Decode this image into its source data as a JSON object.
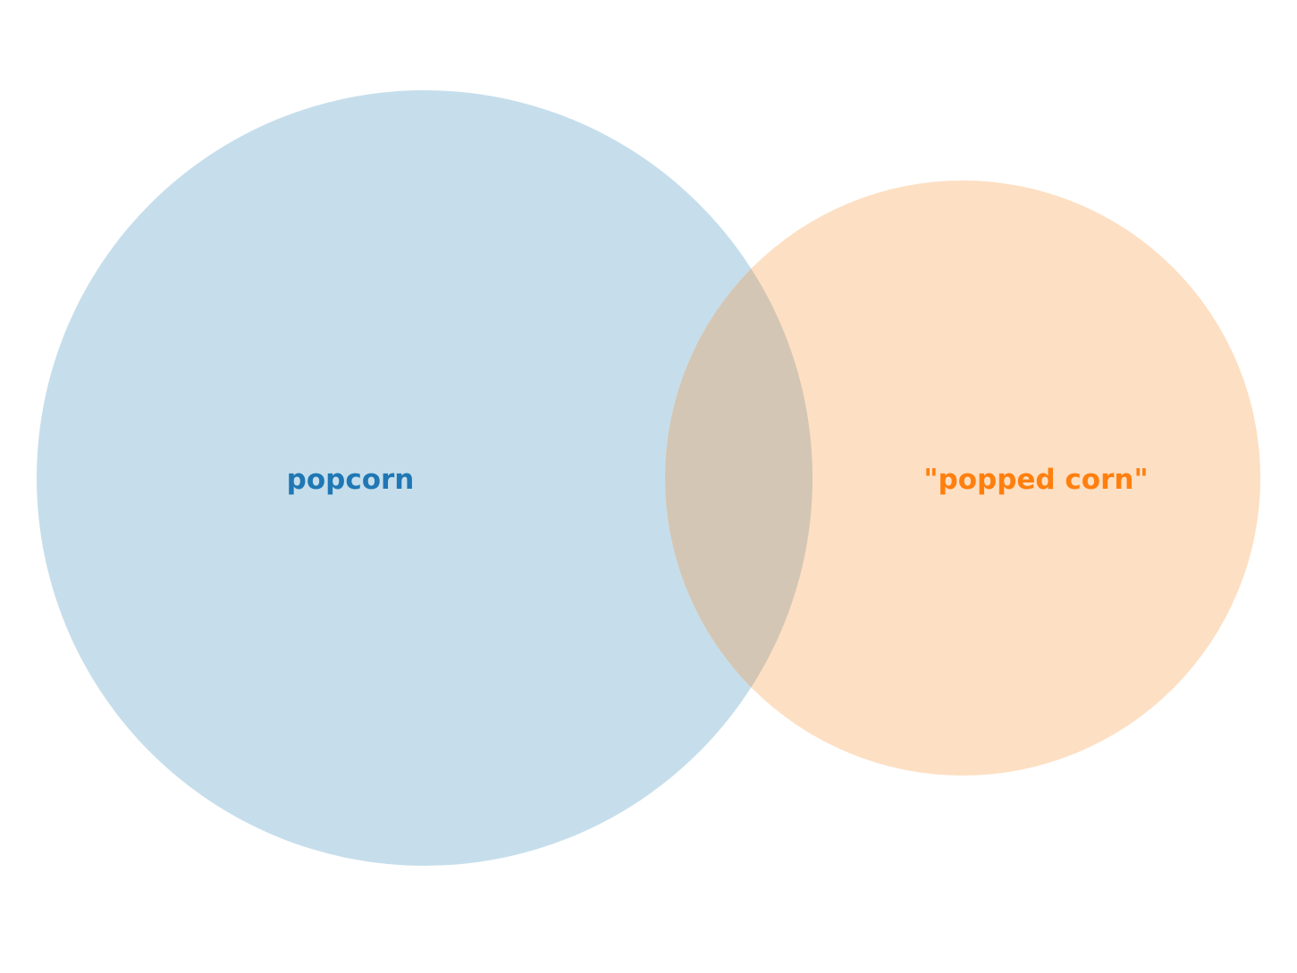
{
  "diagram": {
    "type": "venn",
    "sets": [
      {
        "id": "a",
        "label": "popcorn",
        "color": "#1f77b4",
        "fill": "#c6deeb"
      },
      {
        "id": "b",
        "label": "\"popped corn\"",
        "color": "#ff7f0e",
        "fill": "#fddfc3"
      }
    ],
    "overlap_fill": "#d4c6b4"
  }
}
